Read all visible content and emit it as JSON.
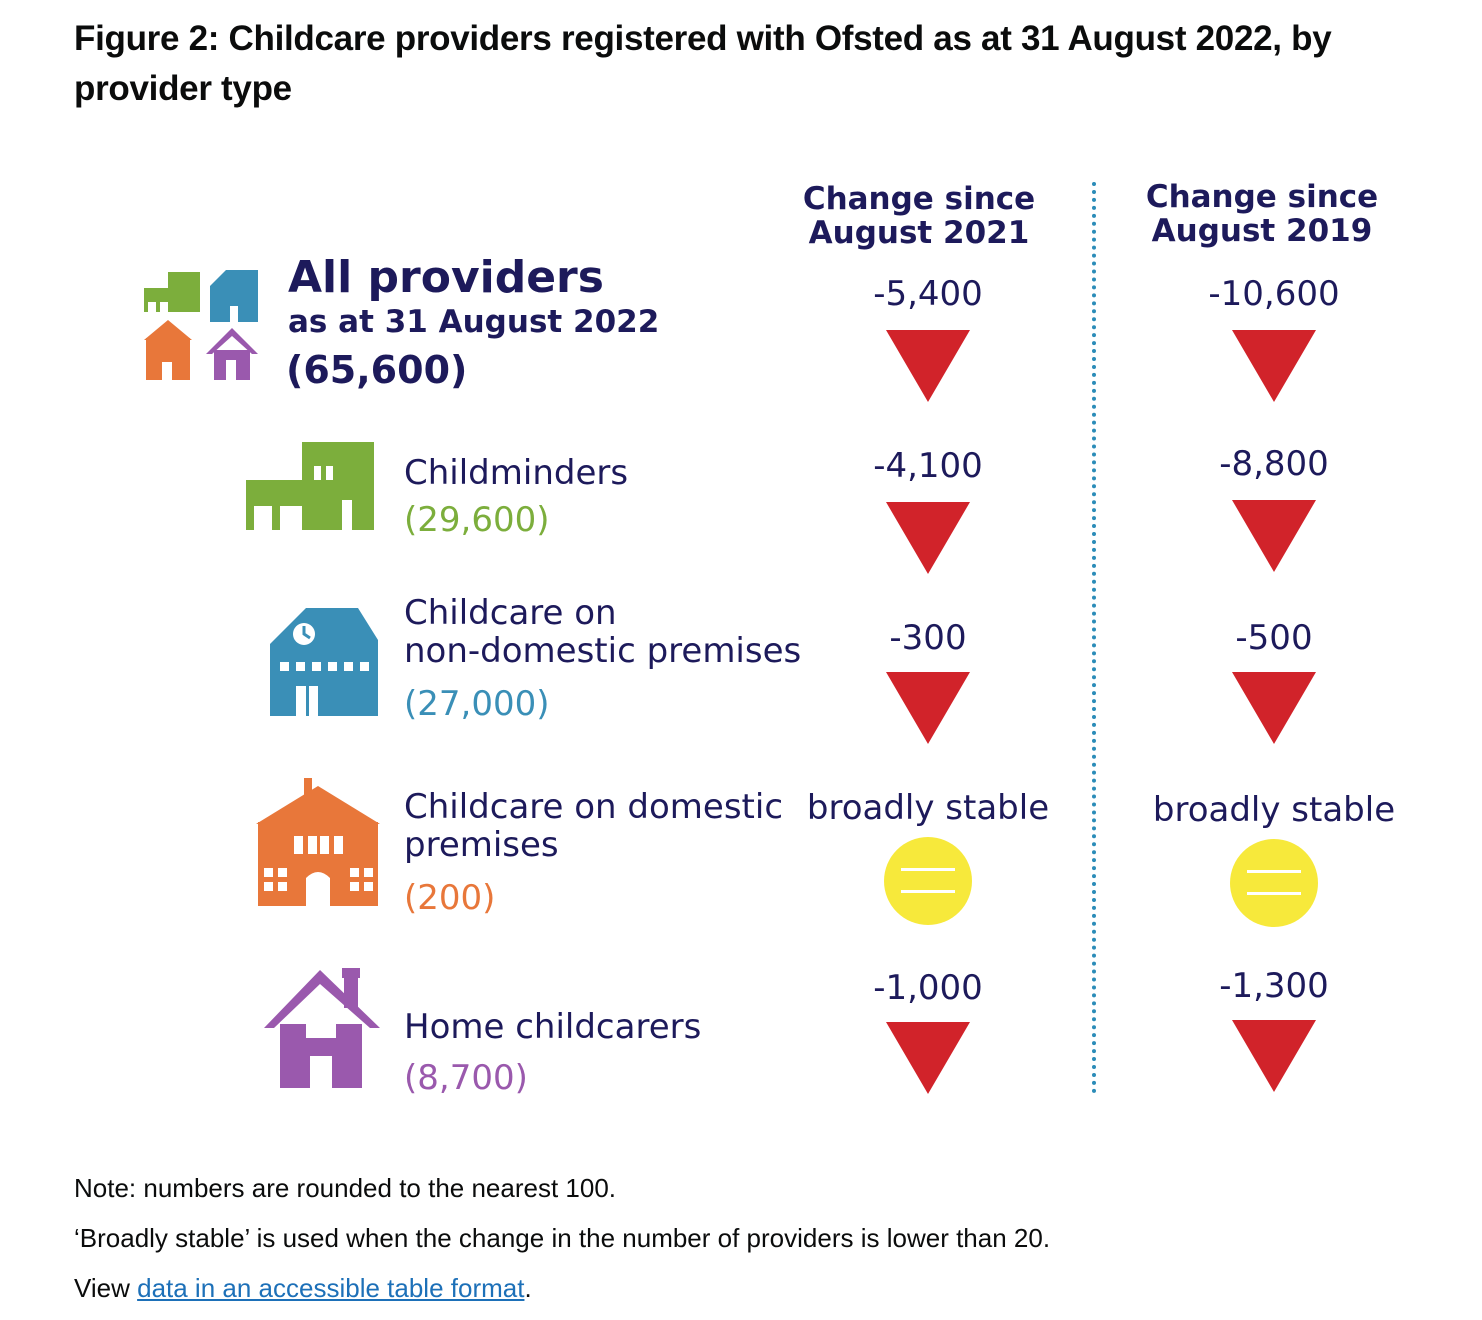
{
  "figure": {
    "title": "Figure 2: Childcare providers registered with Ofsted as at 31 August 2022, by provider type"
  },
  "columns": {
    "col1_line1": "Change since",
    "col1_line2": "August 2021",
    "col2_line1": "Change since",
    "col2_line2": "August 2019"
  },
  "all_providers": {
    "title": "All providers",
    "subtitle": "as at 31 August 2022",
    "count": "(65,600)",
    "change_2021": "-5,400",
    "change_2019": "-10,600"
  },
  "childminders": {
    "label": "Childminders",
    "count": "(29,600)",
    "change_2021": "-4,100",
    "change_2019": "-8,800",
    "color": "#7cae3c"
  },
  "non_domestic": {
    "label_line1": "Childcare on",
    "label_line2": "non-domestic premises",
    "count": "(27,000)",
    "change_2021": "-300",
    "change_2019": "-500",
    "color": "#3a8fb7"
  },
  "domestic": {
    "label_line1": "Childcare on domestic",
    "label_line2": "premises",
    "count": "(200)",
    "change_2021": "broadly stable",
    "change_2019": "broadly stable",
    "color": "#e8773a"
  },
  "home_childcarers": {
    "label": "Home childcarers",
    "count": "(8,700)",
    "change_2021": "-1,000",
    "change_2019": "-1,300",
    "color": "#9a59ad"
  },
  "markers": {
    "decrease_icon": "down-triangle-icon",
    "stable_icon": "equals-circle-icon",
    "decrease_color": "#d1232a",
    "stable_color": "#f7e93b"
  },
  "notes": {
    "line1": "Note: numbers are rounded to the nearest 100.",
    "line2": "‘Broadly stable’ is used when the change in the number of providers is lower than 20.",
    "line3_prefix": "View ",
    "line3_link": "data in an accessible table format",
    "line3_suffix": "."
  }
}
